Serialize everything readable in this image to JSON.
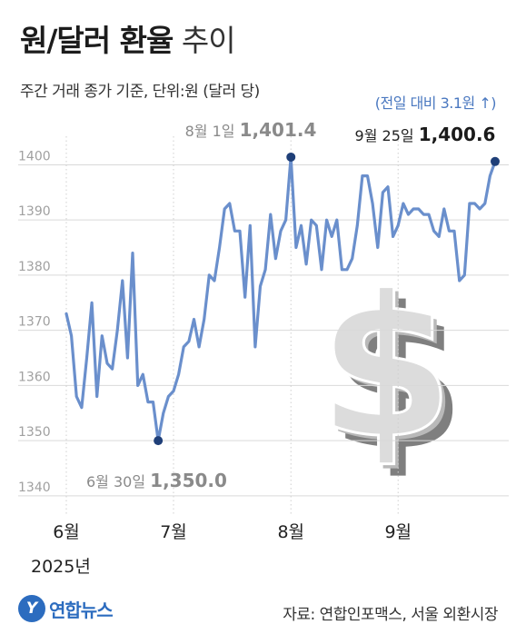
{
  "header": {
    "title_bold": "원/달러 환율",
    "title_light": "추이",
    "subtitle": "주간 거래 종가 기준, 단위:원 (달러 당)",
    "delta_note": "(전일 대비 3.1원 ↑)"
  },
  "footer": {
    "logo_mark": "Y",
    "logo_text": "연합뉴스",
    "source": "자료: 연합인포맥스, 서울 외환시장"
  },
  "colors": {
    "line": "#6a8fcc",
    "marker": "#1f3f78",
    "grid": "#d9d9d9"
  },
  "icon": "dollar-sign-icon",
  "chart_data": {
    "type": "line",
    "ylim": [
      1338,
      1406
    ],
    "yticks": [
      1340,
      1350,
      1360,
      1370,
      1380,
      1390,
      1400
    ],
    "xaxis": {
      "month_ticks": [
        {
          "index": 0,
          "label": "6월"
        },
        {
          "index": 21,
          "label": "7월"
        },
        {
          "index": 44,
          "label": "8월"
        },
        {
          "index": 65,
          "label": "9월"
        }
      ],
      "year_label": "2025년"
    },
    "series": [
      {
        "values": [
          1373,
          1369,
          1358,
          1356,
          1365,
          1375,
          1358,
          1369,
          1364,
          1363,
          1370,
          1379,
          1365,
          1384,
          1360,
          1362,
          1357,
          1357,
          1350,
          1355,
          1358,
          1359,
          1362,
          1367,
          1368,
          1372,
          1367,
          1372,
          1380,
          1379,
          1385,
          1392,
          1393,
          1388,
          1388,
          1376,
          1389,
          1367,
          1378,
          1381,
          1391,
          1383,
          1388,
          1390,
          1401.4,
          1385,
          1389,
          1382,
          1390,
          1389,
          1381,
          1390,
          1387,
          1390,
          1381,
          1381,
          1383,
          1389,
          1398,
          1398,
          1393,
          1385,
          1395,
          1396,
          1387,
          1389,
          1393,
          1391,
          1392,
          1392,
          1391,
          1391,
          1388,
          1387,
          1392,
          1388,
          1388,
          1379,
          1380,
          1393,
          1393,
          1392,
          1393,
          1398,
          1400.6
        ]
      }
    ],
    "annotations": [
      {
        "index": 18,
        "date": "6월 30일",
        "value": "1,350.0"
      },
      {
        "index": 44,
        "date": "8월 1일",
        "value": "1,401.4"
      },
      {
        "index": 84,
        "date": "9월 25일",
        "value": "1,400.6"
      }
    ]
  }
}
